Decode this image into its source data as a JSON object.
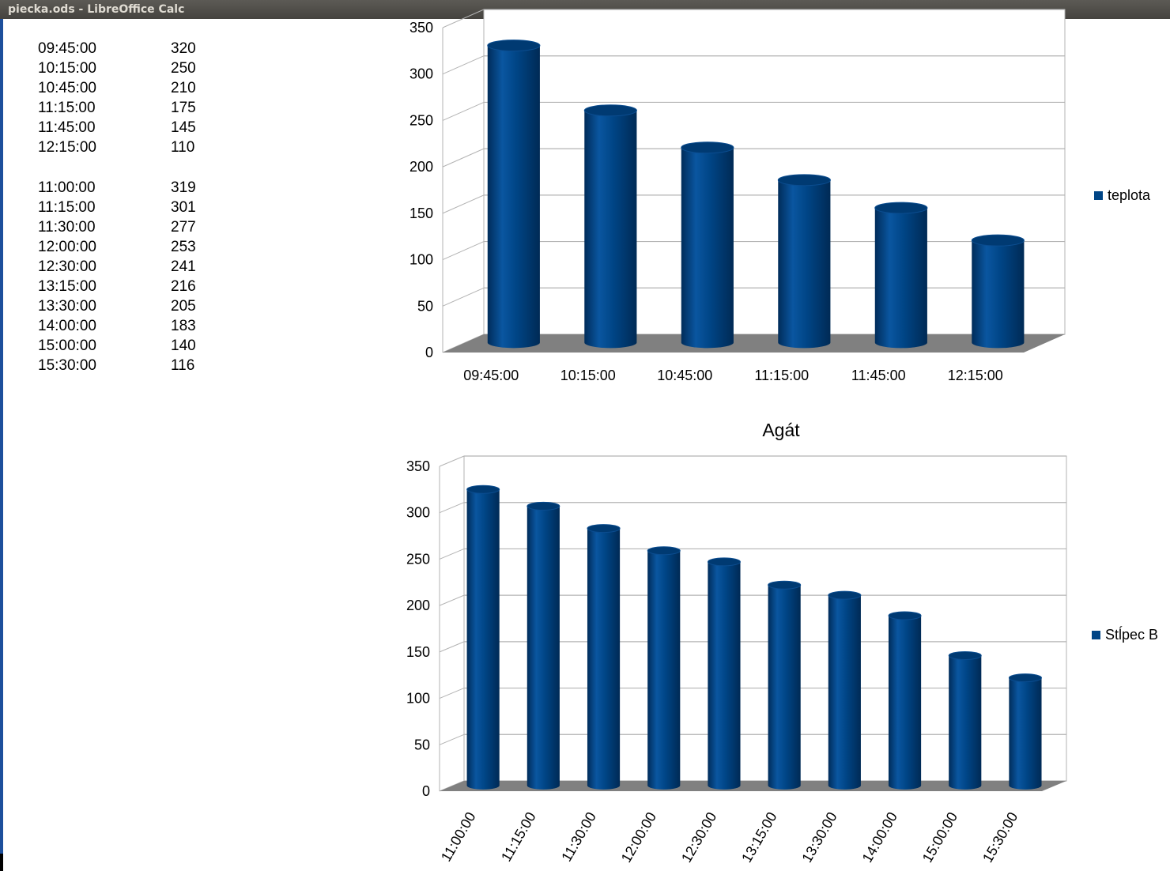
{
  "window": {
    "title": "piecka.ods - LibreOffice Calc"
  },
  "sheet": {
    "block1": [
      {
        "time": "09:45:00",
        "value": "320"
      },
      {
        "time": "10:15:00",
        "value": "250"
      },
      {
        "time": "10:45:00",
        "value": "210"
      },
      {
        "time": "11:15:00",
        "value": "175"
      },
      {
        "time": "11:45:00",
        "value": "145"
      },
      {
        "time": "12:15:00",
        "value": "110"
      }
    ],
    "block2": [
      {
        "time": "11:00:00",
        "value": "319"
      },
      {
        "time": "11:15:00",
        "value": "301"
      },
      {
        "time": "11:30:00",
        "value": "277"
      },
      {
        "time": "12:00:00",
        "value": "253"
      },
      {
        "time": "12:30:00",
        "value": "241"
      },
      {
        "time": "13:15:00",
        "value": "216"
      },
      {
        "time": "13:30:00",
        "value": "205"
      },
      {
        "time": "14:00:00",
        "value": "183"
      },
      {
        "time": "15:00:00",
        "value": "140"
      },
      {
        "time": "15:30:00",
        "value": "116"
      }
    ]
  },
  "chart_data": [
    {
      "type": "bar",
      "style": "3d-cylinder",
      "title": "",
      "categories": [
        "09:45:00",
        "10:15:00",
        "10:45:00",
        "11:15:00",
        "11:45:00",
        "12:15:00"
      ],
      "series": [
        {
          "name": "teplota",
          "values": [
            320,
            250,
            210,
            175,
            145,
            110
          ],
          "color": "#004586"
        }
      ],
      "ylim": [
        0,
        350
      ],
      "yticks": [
        0,
        50,
        100,
        150,
        200,
        250,
        300,
        350
      ],
      "grid": true,
      "legend": "right"
    },
    {
      "type": "bar",
      "style": "3d-cylinder",
      "title": "Agát",
      "categories": [
        "11:00:00",
        "11:15:00",
        "11:30:00",
        "12:00:00",
        "12:30:00",
        "13:15:00",
        "13:30:00",
        "14:00:00",
        "15:00:00",
        "15:30:00"
      ],
      "series": [
        {
          "name": "Stĺpec B",
          "values": [
            319,
            301,
            277,
            253,
            241,
            216,
            205,
            183,
            140,
            116
          ],
          "color": "#004586"
        }
      ],
      "ylim": [
        0,
        350
      ],
      "yticks": [
        0,
        50,
        100,
        150,
        200,
        250,
        300,
        350
      ],
      "grid": true,
      "legend": "right",
      "xlabel_rotation": -60
    }
  ]
}
